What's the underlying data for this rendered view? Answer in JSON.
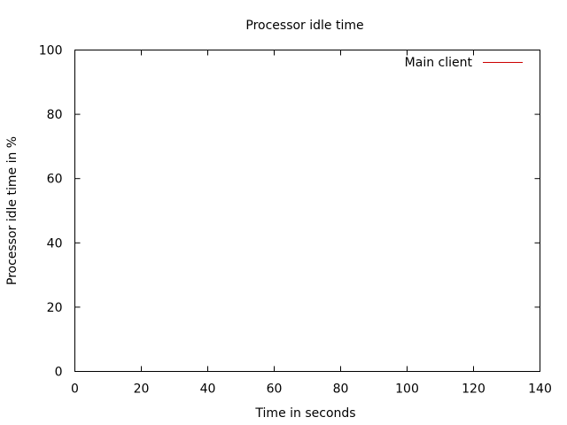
{
  "chart_data": {
    "type": "line",
    "title": "Processor idle time",
    "xlabel": "Time in seconds",
    "ylabel": "Processor idle time in %",
    "xlim": [
      0,
      140
    ],
    "ylim": [
      0,
      100
    ],
    "xticks": [
      0,
      20,
      40,
      60,
      80,
      100,
      120,
      140
    ],
    "yticks": [
      0,
      20,
      40,
      60,
      80,
      100
    ],
    "grid": false,
    "legend_position": "top-right",
    "series": [
      {
        "name": "Main client",
        "color": "#cc0000",
        "x": [],
        "y": []
      }
    ]
  }
}
